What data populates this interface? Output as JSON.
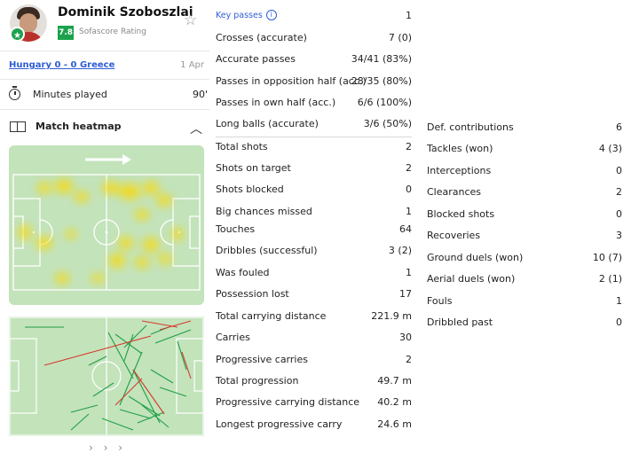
{
  "player": {
    "name": "Dominik Szoboszlai",
    "rating": "7.8",
    "rating_label": "Sofascore Rating"
  },
  "match": {
    "link": "Hungary 0 - 0 Greece",
    "date": "1 Apr"
  },
  "minutes": {
    "label": "Minutes played",
    "value": "90'"
  },
  "heatmap": {
    "title": "Match heatmap"
  },
  "stats_col1": [
    {
      "label": "Key passes",
      "value": "1"
    },
    {
      "label": "Crosses (accurate)",
      "value": "7 (0)"
    },
    {
      "label": "Accurate passes",
      "value": "34/41 (83%)"
    },
    {
      "label": "Passes in opposition half (acc.)",
      "value": "28/35 (80%)"
    },
    {
      "label": "Passes in own half (acc.)",
      "value": "6/6 (100%)"
    },
    {
      "label": "Long balls (accurate)",
      "value": "3/6 (50%)"
    },
    {
      "label": "Total shots",
      "value": "2"
    },
    {
      "label": "Shots on target",
      "value": "2"
    },
    {
      "label": "Shots blocked",
      "value": "0"
    },
    {
      "label": "Big chances missed",
      "value": "1"
    },
    {
      "label": "Touches",
      "value": "64"
    },
    {
      "label": "Dribbles (successful)",
      "value": "3 (2)"
    },
    {
      "label": "Was fouled",
      "value": "1"
    },
    {
      "label": "Possession lost",
      "value": "17"
    },
    {
      "label": "Total carrying distance",
      "value": "221.9 m"
    },
    {
      "label": "Carries",
      "value": "30"
    },
    {
      "label": "Progressive carries",
      "value": "2"
    },
    {
      "label": "Total progression",
      "value": "49.7 m"
    },
    {
      "label": "Progressive carrying distance",
      "value": "40.2 m"
    },
    {
      "label": "Longest progressive carry",
      "value": "24.6 m"
    }
  ],
  "stats_col2": [
    {
      "label": "Def. contributions",
      "value": "6"
    },
    {
      "label": "Tackles (won)",
      "value": "4 (3)"
    },
    {
      "label": "Interceptions",
      "value": "0"
    },
    {
      "label": "Clearances",
      "value": "2"
    },
    {
      "label": "Blocked shots",
      "value": "0"
    },
    {
      "label": "Recoveries",
      "value": "3"
    },
    {
      "label": "Ground duels (won)",
      "value": "10 (7)"
    },
    {
      "label": "Aerial duels (won)",
      "value": "2 (1)"
    },
    {
      "label": "Fouls",
      "value": "1"
    },
    {
      "label": "Dribbled past",
      "value": "0"
    }
  ],
  "colors": {
    "rating_green": "#1ca24c",
    "link_blue": "#2f5dd6",
    "pitch_green": "#c3e3bb",
    "pass_success": "#1f9e46",
    "pass_fail": "#d63a2f",
    "heat": "#f5d90a"
  },
  "icons": [
    "star-icon",
    "stopwatch-icon",
    "pitch-icon",
    "chevron-up-icon",
    "info-icon",
    "chevron-right-icon"
  ]
}
